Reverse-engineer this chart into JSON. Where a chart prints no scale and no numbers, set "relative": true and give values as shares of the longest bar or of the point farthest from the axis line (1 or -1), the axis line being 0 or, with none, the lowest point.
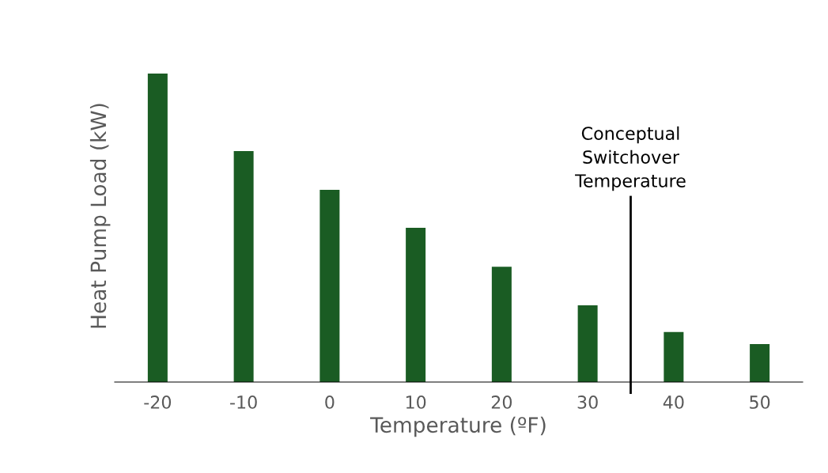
{
  "chart_data": {
    "type": "bar",
    "xlabel": "Temperature (ºF)",
    "ylabel": "Heat Pump Load (kW)",
    "x": [
      -20,
      -10,
      0,
      10,
      20,
      30,
      40,
      50
    ],
    "values": [
      1,
      0.749,
      0.623,
      0.5,
      0.374,
      0.249,
      0.162,
      0.123
    ],
    "color": "#1a5c23",
    "relative": true,
    "xlim": [
      -25,
      55
    ],
    "xticks": [
      -20,
      -10,
      0,
      10,
      20,
      30,
      40,
      50
    ],
    "ref_lines": [
      {
        "axis": "x",
        "value": 35,
        "label": "Conceptual\nSwitchover\nTemperature",
        "color": "#000000",
        "line_style": "solid"
      }
    ],
    "grid": false,
    "legend": false
  }
}
